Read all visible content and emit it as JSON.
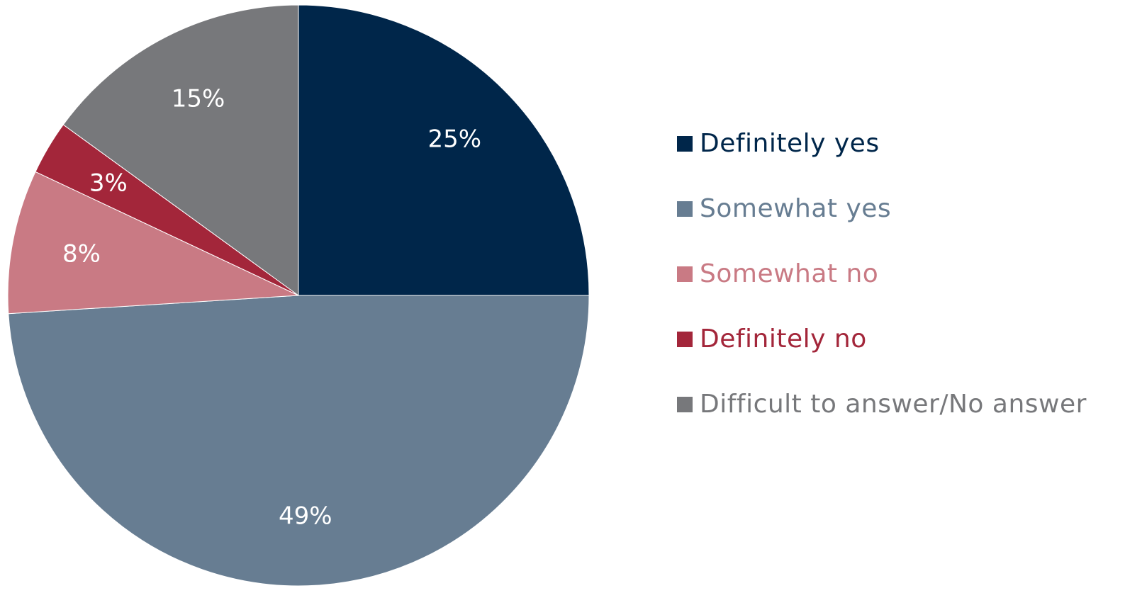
{
  "chart_data": {
    "type": "pie",
    "categories": [
      "Definitely yes",
      "Somewhat yes",
      "Somewhat no",
      "Definitely no",
      "Difficult to answer/No answer"
    ],
    "values": [
      25,
      49,
      8,
      3,
      15
    ],
    "data_labels": [
      "25%",
      "49%",
      "8%",
      "3%",
      "15%"
    ],
    "colors": [
      "#00264a",
      "#677d92",
      "#c97a84",
      "#a3263a",
      "#77787b"
    ],
    "legend_text_colors": [
      "#00264a",
      "#677d92",
      "#c97a84",
      "#a3263a",
      "#77787b"
    ],
    "label_color": "#ffffff",
    "start": "12 o'clock",
    "direction": "clockwise",
    "legend_position": "right",
    "title": ""
  }
}
